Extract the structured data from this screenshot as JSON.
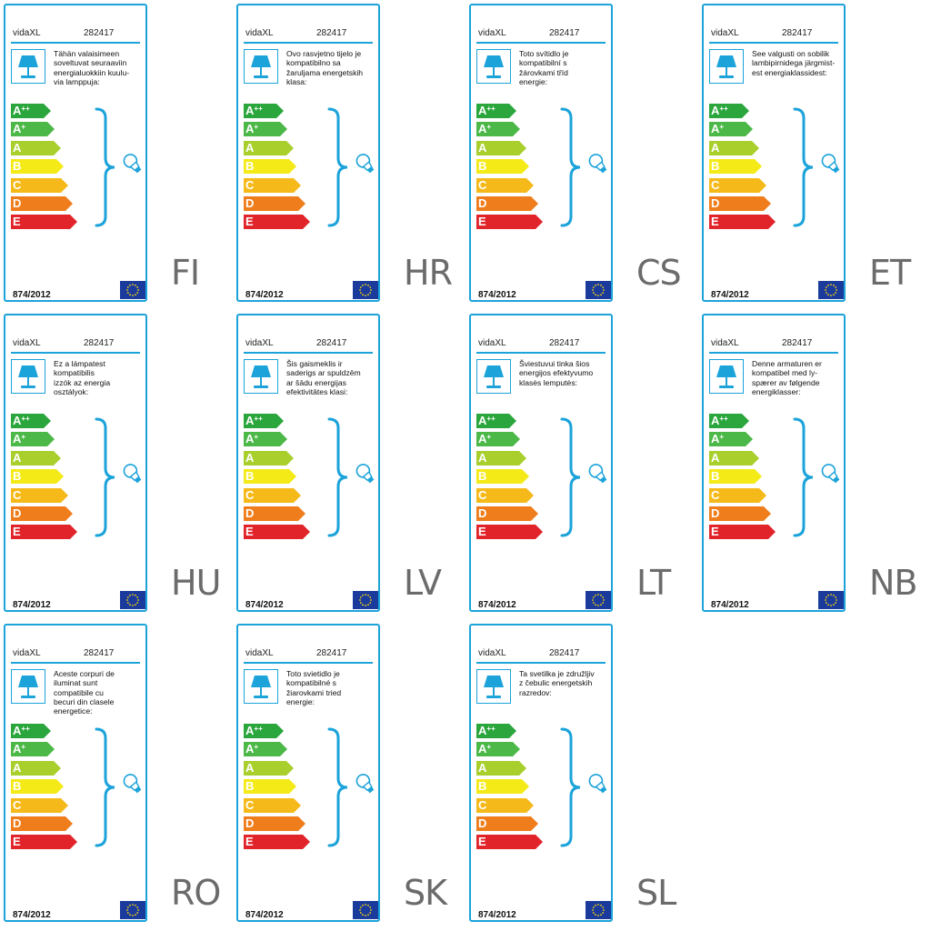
{
  "colors": {
    "frame": "#1ba3da",
    "code_text": "#6b6b6b",
    "eu_flag": "#1a3b9c",
    "eu_stars": "#ffd700"
  },
  "energy_classes": [
    {
      "letter": "A",
      "sup": "++",
      "color": "#2aa63c"
    },
    {
      "letter": "A",
      "sup": "+",
      "color": "#4cb848"
    },
    {
      "letter": "A",
      "sup": "",
      "color": "#a8cf2c"
    },
    {
      "letter": "B",
      "sup": "",
      "color": "#f4ea18"
    },
    {
      "letter": "C",
      "sup": "",
      "color": "#f5b91a"
    },
    {
      "letter": "D",
      "sup": "",
      "color": "#ef7d1c"
    },
    {
      "letter": "E",
      "sup": "",
      "color": "#e1232a"
    }
  ],
  "icons": {
    "lamp": "table-lamp-icon",
    "bulb": "light-bulb-icon",
    "brace": "curly-brace-icon",
    "flag": "eu-flag-icon"
  },
  "labels": [
    {
      "code": "FI",
      "brand": "vidaXL",
      "model": "282417",
      "regulation": "874/2012",
      "lines": [
        "Tähän valaisimeen",
        "soveltuvat seuraaviin",
        "energialuokkiin kuulu-",
        "via lamppuja:"
      ]
    },
    {
      "code": "HR",
      "brand": "vidaXL",
      "model": "282417",
      "regulation": "874/2012",
      "lines": [
        "Ovo rasvjetno tijelo je",
        "kompatibilno sa",
        "žaruljama energetskih",
        "klasa:"
      ]
    },
    {
      "code": "CS",
      "brand": "vidaXL",
      "model": "282417",
      "regulation": "874/2012",
      "lines": [
        "Toto svítidlo je",
        "kompatibilní s",
        "žárovkami tříd",
        "energie:"
      ]
    },
    {
      "code": "ET",
      "brand": "vidaXL",
      "model": "282417",
      "regulation": "874/2012",
      "lines": [
        "See valgusti on sobilik",
        "lambipirnidega järgmist-",
        "est energiaklassidest:"
      ]
    },
    {
      "code": "HU",
      "brand": "vidaXL",
      "model": "282417",
      "regulation": "874/2012",
      "lines": [
        "Ez a lámpatest",
        "kompatibilis",
        "izzók az energia",
        "osztályok:"
      ]
    },
    {
      "code": "LV",
      "brand": "vidaXL",
      "model": "282417",
      "regulation": "874/2012",
      "lines": [
        "Šis gaismeklis ir",
        "saderigs ar spuldzēm",
        "ar šādu energijas",
        "efektivitātes klasi:"
      ]
    },
    {
      "code": "LT",
      "brand": "vidaXL",
      "model": "282417",
      "regulation": "874/2012",
      "lines": [
        "Šviestuvui tinka šios",
        "energijos efektyvumo",
        "klasės lemputės:"
      ]
    },
    {
      "code": "NB",
      "brand": "vidaXL",
      "model": "282417",
      "regulation": "874/2012",
      "lines": [
        "Denne armaturen er",
        "kompatibel med ly-",
        "spærer av følgende",
        "energiklasser:"
      ]
    },
    {
      "code": "RO",
      "brand": "vidaXL",
      "model": "282417",
      "regulation": "874/2012",
      "lines": [
        "Aceste corpuri de",
        "iluminat sunt",
        "compatibile cu",
        "becuri din clasele",
        "energetice:"
      ]
    },
    {
      "code": "SK",
      "brand": "vidaXL",
      "model": "282417",
      "regulation": "874/2012",
      "lines": [
        "Toto svietidlo je",
        "kompatibilné s",
        "žiarovkami tried",
        "energie:"
      ]
    },
    {
      "code": "SL",
      "brand": "vidaXL",
      "model": "282417",
      "regulation": "874/2012",
      "lines": [
        "Ta svetilka je združljiv",
        "z čebulic energetskih",
        "razredov:"
      ]
    }
  ]
}
